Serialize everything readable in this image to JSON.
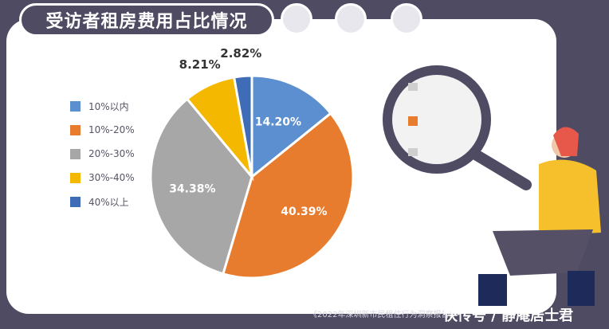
{
  "header": {
    "title": "受访者租房费用占比情况"
  },
  "footer": {
    "source": "《2022年深圳新市民租住行为洞察报告》",
    "watermark": "快传号 / 静庵居士君"
  },
  "chart_data": {
    "type": "pie",
    "categories": [
      "10%以内",
      "10%-20%",
      "20%-30%",
      "30%-40%",
      "40%以上"
    ],
    "values": [
      14.2,
      40.39,
      34.38,
      8.21,
      2.82
    ],
    "labels": [
      "14.20%",
      "40.39%",
      "34.38%",
      "8.21%",
      "2.82%"
    ],
    "colors": [
      "#5b8fd0",
      "#e87c2e",
      "#a7a7a7",
      "#f5b800",
      "#3e6cb6"
    ],
    "legend": "left",
    "start": "top, clockwise"
  }
}
